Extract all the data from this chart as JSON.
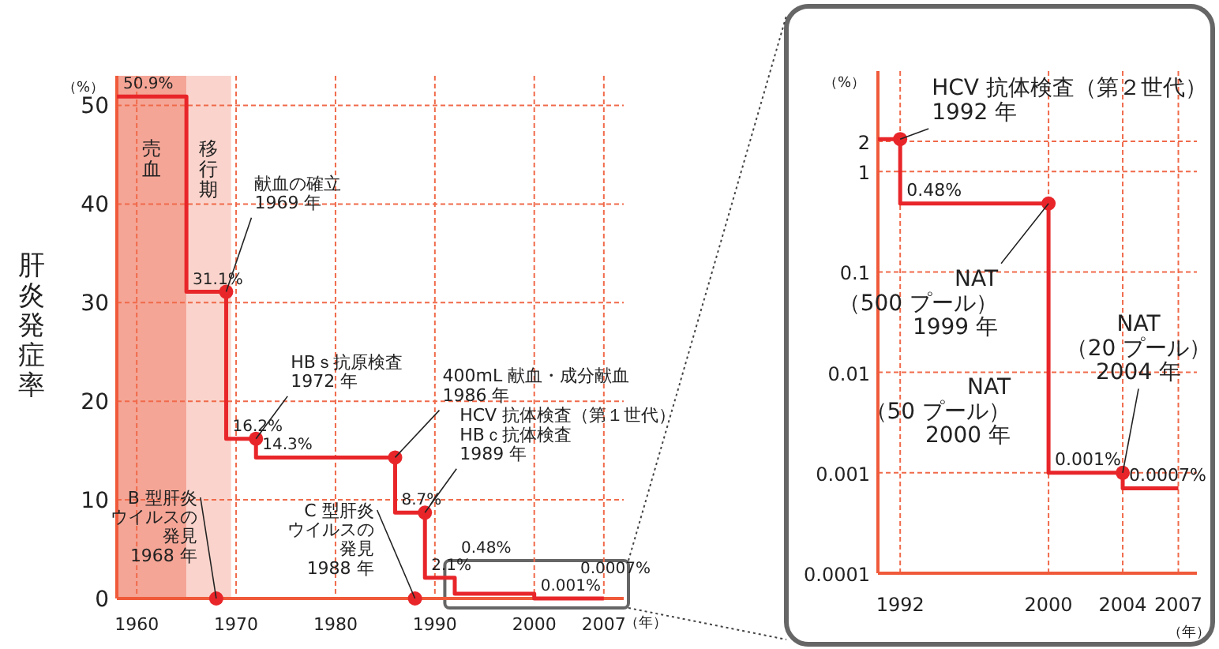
{
  "chart_data": [
    {
      "type": "step",
      "ylabel": "肝炎発症率",
      "xlabel": "（年）",
      "xlim": [
        1958,
        2009
      ],
      "ylim": [
        0,
        53
      ],
      "xticks": [
        1960,
        1970,
        1980,
        1990,
        2000,
        2007
      ],
      "yticks": [
        0,
        10,
        20,
        30,
        40,
        50
      ],
      "grid": true,
      "series": [
        {
          "type": "step",
          "color": "#e8262a",
          "x": [
            1958,
            1965,
            1969,
            1972,
            1986,
            1989,
            1992,
            2000,
            2004,
            2007
          ],
          "values": [
            50.9,
            31.1,
            16.2,
            14.3,
            8.7,
            2.1,
            0.48,
            0.001,
            0.0007,
            0.0007
          ],
          "value_labels": [
            "50.9%",
            "31.1%",
            "16.2%",
            "14.3%",
            "8.7%",
            "2.1%",
            "0.48%",
            "0.001%",
            "0.0007%",
            null
          ]
        },
        {
          "type": "scatter",
          "color": "#e8262a",
          "marker": "circle",
          "x": [
            1968,
            1969,
            1972,
            1986,
            1988,
            1989
          ],
          "values": [
            0,
            31.1,
            16.2,
            14.3,
            0,
            8.7
          ]
        }
      ],
      "bands": [
        {
          "axis": "x",
          "from": 1958,
          "to": 1965,
          "label": "売血",
          "color": "#f4a596"
        },
        {
          "axis": "x",
          "from": 1965,
          "to": 1969.5,
          "label": "移行期",
          "color": "#fad4cc"
        }
      ],
      "annotations": [
        "（%）",
        {
          "text": "B 型肝炎ウイルスの発見 1968 年",
          "x": 1968,
          "y": 0
        },
        {
          "text": "献血の確立 1969 年",
          "x": 1969,
          "y": 31.1
        },
        {
          "text": "HBｓ抗原検査 1972 年",
          "x": 1972,
          "y": 16.2
        },
        {
          "text": "400mL 献血・成分献血 1986 年",
          "x": 1986,
          "y": 14.3
        },
        {
          "text": "HCV 抗体検査（第１世代）HBｃ抗体検査 1989 年",
          "x": 1989,
          "y": 8.7
        },
        {
          "text": "C 型肝炎ウイルスの発見 1988 年",
          "x": 1988,
          "y": 0
        }
      ]
    },
    {
      "type": "step",
      "xlabel": "（年）",
      "log": "y",
      "xlim": [
        1990.8,
        2008
      ],
      "ylim": [
        0.0001,
        10
      ],
      "xticks": [
        1992,
        2000,
        2004,
        2007
      ],
      "yticks": [
        0.0001,
        0.001,
        0.01,
        0.1,
        1,
        2
      ],
      "grid": true,
      "series": [
        {
          "type": "step",
          "color": "#e8262a",
          "x": [
            1990.8,
            1992,
            2000,
            2004,
            2007
          ],
          "values": [
            2.1,
            0.48,
            0.001,
            0.0007,
            0.0007
          ],
          "value_labels": [
            null,
            "0.48%",
            "0.001%",
            "0.0007%",
            null
          ]
        },
        {
          "type": "scatter",
          "color": "#e8262a",
          "marker": "circle",
          "x": [
            1992,
            2000,
            2004
          ],
          "values": [
            2.1,
            0.48,
            0.001
          ]
        }
      ],
      "annotations": [
        "（%）",
        {
          "text": "HCV 抗体検査（第２世代）1992 年",
          "x": 1992,
          "y": 2.1
        },
        {
          "text": "NAT（500 プール）1999 年",
          "x": 2000,
          "y": 0.48
        },
        {
          "text": "NAT（50 プール）2000 年",
          "x": 2000,
          "y": 0.001
        },
        {
          "text": "NAT（20 プール）2004 年",
          "x": 2004,
          "y": 0.001
        }
      ]
    }
  ]
}
